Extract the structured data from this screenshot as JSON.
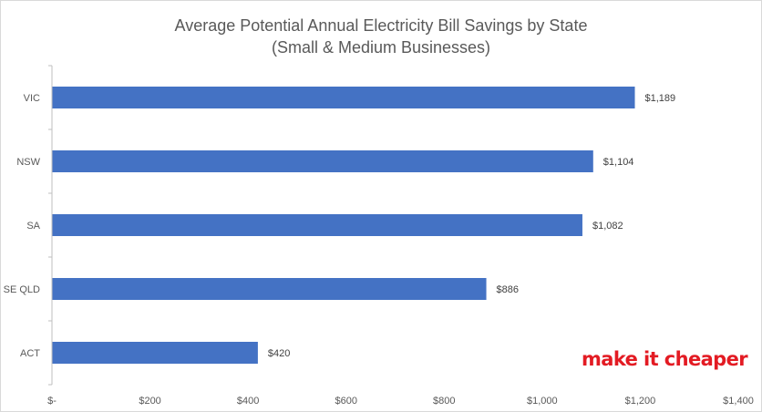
{
  "colors": {
    "bar": "#4472c4",
    "axis": "#bfbfbf",
    "text": "#595959",
    "brand": "#e31b23"
  },
  "chart_data": {
    "type": "bar",
    "orientation": "horizontal",
    "title": "Average Potential Annual Electricity Bill Savings by State",
    "subtitle": "(Small & Medium Businesses)",
    "xlabel": "",
    "ylabel": "",
    "categories": [
      "VIC",
      "NSW",
      "SA",
      "SE QLD",
      "ACT"
    ],
    "values": [
      1189,
      1104,
      1082,
      886,
      420
    ],
    "data_labels": [
      "$1,189",
      "$1,104",
      "$1,082",
      "$886",
      "$420"
    ],
    "xlim": [
      0,
      1400
    ],
    "x_ticks": [
      0,
      200,
      400,
      600,
      800,
      1000,
      1200,
      1400
    ],
    "x_tick_labels": [
      "$-",
      "$200",
      "$400",
      "$600",
      "$800",
      "$1,000",
      "$1,200",
      "$1,400"
    ],
    "grid": false,
    "legend": "none"
  },
  "branding": {
    "logo_text": "make it cheaper"
  }
}
